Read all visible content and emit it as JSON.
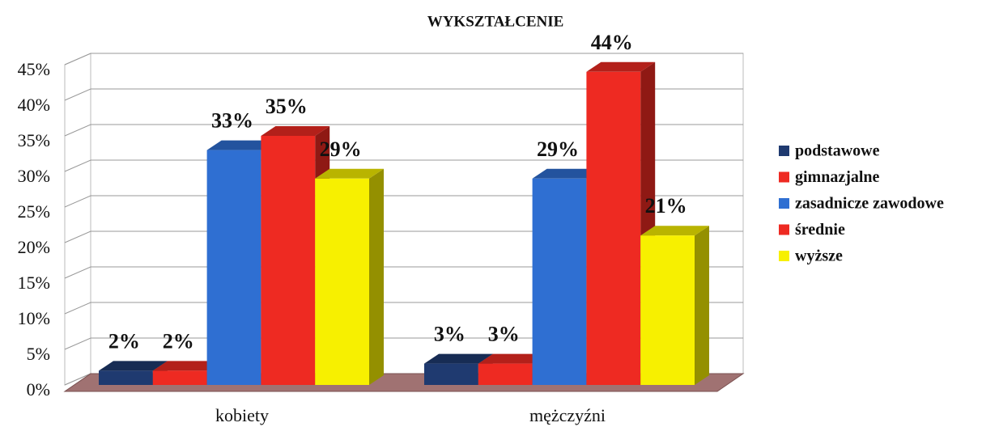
{
  "chart_data": {
    "type": "bar3d",
    "title": "WYKSZTAŁCENIE",
    "categories": [
      "kobiety",
      "mężczyźni"
    ],
    "series": [
      {
        "name": "podstawowe",
        "color": "#1f3a70",
        "values": [
          2,
          3
        ],
        "value_labels": [
          "2%",
          "3%"
        ]
      },
      {
        "name": "gimnazjalne",
        "color": "#ee2a22",
        "values": [
          2,
          3
        ],
        "value_labels": [
          "2%",
          "3%"
        ]
      },
      {
        "name": "zasadnicze zawodowe",
        "color": "#2f6fd2",
        "values": [
          33,
          29
        ],
        "value_labels": [
          "33%",
          "29%"
        ]
      },
      {
        "name": "średnie",
        "color": "#ee2a22",
        "values": [
          35,
          44
        ],
        "value_labels": [
          "35%",
          "44%"
        ]
      },
      {
        "name": "wyższe",
        "color": "#f7f000",
        "values": [
          29,
          21
        ],
        "value_labels": [
          "29%",
          "21%"
        ]
      }
    ],
    "ylim": [
      0,
      45
    ],
    "yticks": [
      {
        "value": 0,
        "label": "0%"
      },
      {
        "value": 5,
        "label": "5%"
      },
      {
        "value": 10,
        "label": "10%"
      },
      {
        "value": 15,
        "label": "15%"
      },
      {
        "value": 20,
        "label": "20%"
      },
      {
        "value": 25,
        "label": "25%"
      },
      {
        "value": 30,
        "label": "30%"
      },
      {
        "value": 35,
        "label": "35%"
      },
      {
        "value": 40,
        "label": "40%"
      },
      {
        "value": 45,
        "label": "45%"
      }
    ],
    "grid": true,
    "legend": "right"
  }
}
